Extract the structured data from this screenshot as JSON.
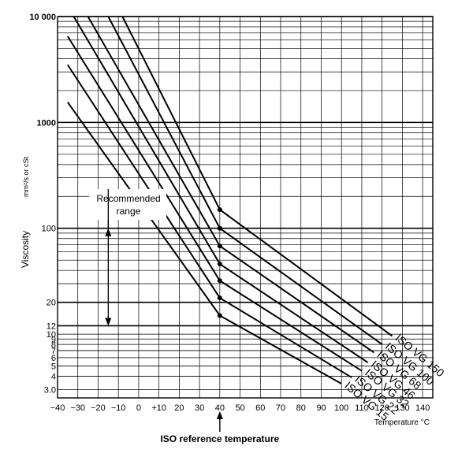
{
  "chart_data": {
    "type": "line",
    "title": "",
    "xlabel": "Temperature °C",
    "ylabel": "Viscosity",
    "yunit": "mm²/s or cSt",
    "y_scale": "log",
    "xlim": [
      -40,
      145
    ],
    "ylim": [
      2.5,
      10000
    ],
    "grid": true,
    "x_ticks": [
      {
        "value": -40,
        "label": "−40"
      },
      {
        "value": -30,
        "label": "−30"
      },
      {
        "value": -20,
        "label": "−20"
      },
      {
        "value": -10,
        "label": "−10"
      },
      {
        "value": 0,
        "label": "0"
      },
      {
        "value": 10,
        "label": "+10"
      },
      {
        "value": 20,
        "label": "20"
      },
      {
        "value": 30,
        "label": "30"
      },
      {
        "value": 40,
        "label": "40"
      },
      {
        "value": 50,
        "label": "50"
      },
      {
        "value": 60,
        "label": "60"
      },
      {
        "value": 70,
        "label": "70"
      },
      {
        "value": 80,
        "label": "80"
      },
      {
        "value": 90,
        "label": "90"
      },
      {
        "value": 100,
        "label": "100"
      },
      {
        "value": 110,
        "label": "110"
      },
      {
        "value": 120,
        "label": "120"
      },
      {
        "value": 130,
        "label": "130"
      },
      {
        "value": 140,
        "label": "140"
      }
    ],
    "y_ticks": [
      {
        "value": 10000,
        "label": "10 000"
      },
      {
        "value": 1000,
        "label": "1000"
      },
      {
        "value": 100,
        "label": "100"
      },
      {
        "value": 20,
        "label": "20"
      },
      {
        "value": 12,
        "label": "12"
      },
      {
        "value": 10,
        "label": "10"
      },
      {
        "value": 9,
        "label": "9"
      },
      {
        "value": 8,
        "label": "8"
      },
      {
        "value": 7,
        "label": "7"
      },
      {
        "value": 6,
        "label": "6"
      },
      {
        "value": 5,
        "label": "5"
      },
      {
        "value": 4,
        "label": "4"
      },
      {
        "value": 3,
        "label": "3.0"
      }
    ],
    "y_grid_minor": [
      2000,
      3000,
      4000,
      5000,
      6000,
      7000,
      8000,
      9000,
      200,
      300,
      400,
      500,
      600,
      700,
      800,
      900,
      30,
      40,
      50,
      60,
      70,
      80,
      90
    ],
    "y_grid_bold": [
      100,
      20,
      12
    ],
    "series": [
      {
        "name": "ISO VG 15",
        "values": [
          [
            -35,
            1550
          ],
          [
            40,
            15
          ],
          [
            100,
            3.4
          ]
        ]
      },
      {
        "name": "ISO VG 22",
        "values": [
          [
            -35,
            3500
          ],
          [
            40,
            22
          ],
          [
            105,
            3.9
          ]
        ]
      },
      {
        "name": "ISO VG 32",
        "values": [
          [
            -35,
            6500
          ],
          [
            40,
            32
          ],
          [
            110,
            4.5
          ]
        ]
      },
      {
        "name": "ISO VG 46",
        "values": [
          [
            -32,
            10000
          ],
          [
            40,
            46
          ],
          [
            113,
            5.4
          ]
        ]
      },
      {
        "name": "ISO VG 68",
        "values": [
          [
            -25,
            10000
          ],
          [
            40,
            68
          ],
          [
            116,
            6.7
          ]
        ]
      },
      {
        "name": "ISO VG 100",
        "values": [
          [
            -15,
            10000
          ],
          [
            40,
            100
          ],
          [
            120,
            8.0
          ]
        ]
      },
      {
        "name": "ISO VG 150",
        "values": [
          [
            -8,
            10000
          ],
          [
            40,
            150
          ],
          [
            125,
            9.6
          ]
        ]
      }
    ],
    "reference_points": [
      15,
      22,
      32,
      46,
      68,
      100,
      150
    ],
    "reference_temperature": 40,
    "annotations": {
      "recommended_range": "Recommended\nrange",
      "recommended_range_limits": [
        12,
        100
      ],
      "reference_label": "ISO reference temperature"
    }
  }
}
